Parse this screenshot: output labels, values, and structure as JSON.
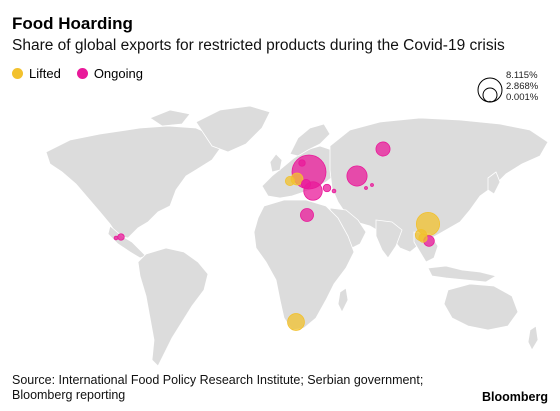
{
  "title": "Food Hoarding",
  "subtitle": "Share of global exports for restricted products during the Covid-19 crisis",
  "legend": {
    "lifted_label": "Lifted",
    "ongoing_label": "Ongoing",
    "lifted_color": "#f2c12e",
    "ongoing_color": "#e9199a"
  },
  "size_legend": {
    "large": "8.115%",
    "medium": "2.868%",
    "small": "0.001%"
  },
  "source": "Source: International Food Policy Research Institute; Serbian government; Bloomberg reporting",
  "brand": "Bloomberg",
  "map_data": {
    "land_color": "#dcdcdc",
    "border_color": "#ffffff",
    "bubbles": [
      {
        "country": "Russia",
        "status": "ongoing",
        "share": 1.4
      },
      {
        "country": "Ukraine",
        "status": "ongoing",
        "share": 8.115
      },
      {
        "country": "Kazakhstan",
        "status": "ongoing",
        "share": 2.868
      },
      {
        "country": "Romania",
        "status": "ongoing",
        "share": 2.4
      },
      {
        "country": "Belarus",
        "status": "ongoing",
        "share": 0.3
      },
      {
        "country": "Serbia",
        "status": "lifted",
        "share": 0.6
      },
      {
        "country": "Hungary",
        "status": "lifted",
        "share": 1.0
      },
      {
        "country": "Bulgaria",
        "status": "ongoing",
        "share": 0.6
      },
      {
        "country": "Turkey",
        "status": "ongoing",
        "share": 0.4
      },
      {
        "country": "Armenia",
        "status": "ongoing",
        "share": 0.1
      },
      {
        "country": "Egypt",
        "status": "ongoing",
        "share": 1.2
      },
      {
        "country": "Kyrgyzstan",
        "status": "ongoing",
        "share": 0.05
      },
      {
        "country": "Tajikistan",
        "status": "ongoing",
        "share": 0.05
      },
      {
        "country": "Myanmar",
        "status": "lifted",
        "share": 0.9
      },
      {
        "country": "Vietnam",
        "status": "lifted",
        "share": 3.8
      },
      {
        "country": "Cambodia",
        "status": "ongoing",
        "share": 0.8
      },
      {
        "country": "Thailand",
        "status": "lifted",
        "share": 0.5
      },
      {
        "country": "Honduras",
        "status": "ongoing",
        "share": 0.3
      },
      {
        "country": "El Salvador",
        "status": "ongoing",
        "share": 0.1
      },
      {
        "country": "South Africa",
        "status": "lifted",
        "share": 2.0
      }
    ]
  }
}
